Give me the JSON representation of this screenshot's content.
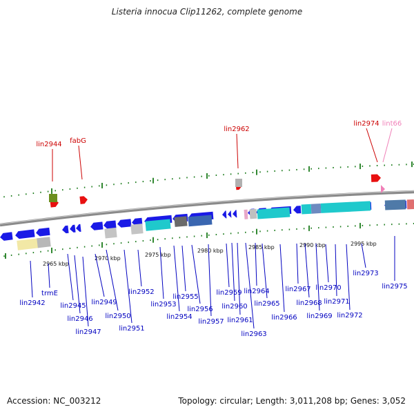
{
  "header": {
    "title": "Listeria innocua Clip11262, complete genome"
  },
  "footer": {
    "accession": "Accession: NC_003212",
    "topology": "Topology: circular; Length: 3,011,208 bp; Genes: 3,052"
  },
  "colors": {
    "background": "#ffffff",
    "backbone": "#8a8a8a",
    "forward_gene": "#e81010",
    "reverse_gene": "#1a1ae6",
    "trna_marker": "#6b8f1e",
    "cds_feature": "#1fc9cc",
    "label_forward": "#cc0000",
    "label_reverse": "#0000c0",
    "label_pseudo": "#f080b8",
    "tick": "#1a7a1a"
  },
  "scale_labels": [
    "2965 kbp",
    "2970 kbp",
    "2975 kbp",
    "2980 kbp",
    "2985 kbp",
    "2990 kbp",
    "2995 kbp"
  ],
  "forward_labels": [
    "lin2944",
    "fabG",
    "lin2962",
    "lin2974",
    "lint66"
  ],
  "reverse_labels": [
    "lin2942",
    "trmE",
    "lin2945",
    "lin2946",
    "lin2947",
    "lin2949",
    "lin2950",
    "lin2951",
    "lin2952",
    "lin2953",
    "lin2954",
    "lin2955",
    "lin2956",
    "lin2957",
    "lin2959",
    "lin2960",
    "lin2961",
    "lin2963",
    "lin2964",
    "lin2965",
    "lin2966",
    "lin2967",
    "lin2968",
    "lin2969",
    "lin2970",
    "lin2971",
    "lin2972",
    "lin2973",
    "lin2975"
  ]
}
